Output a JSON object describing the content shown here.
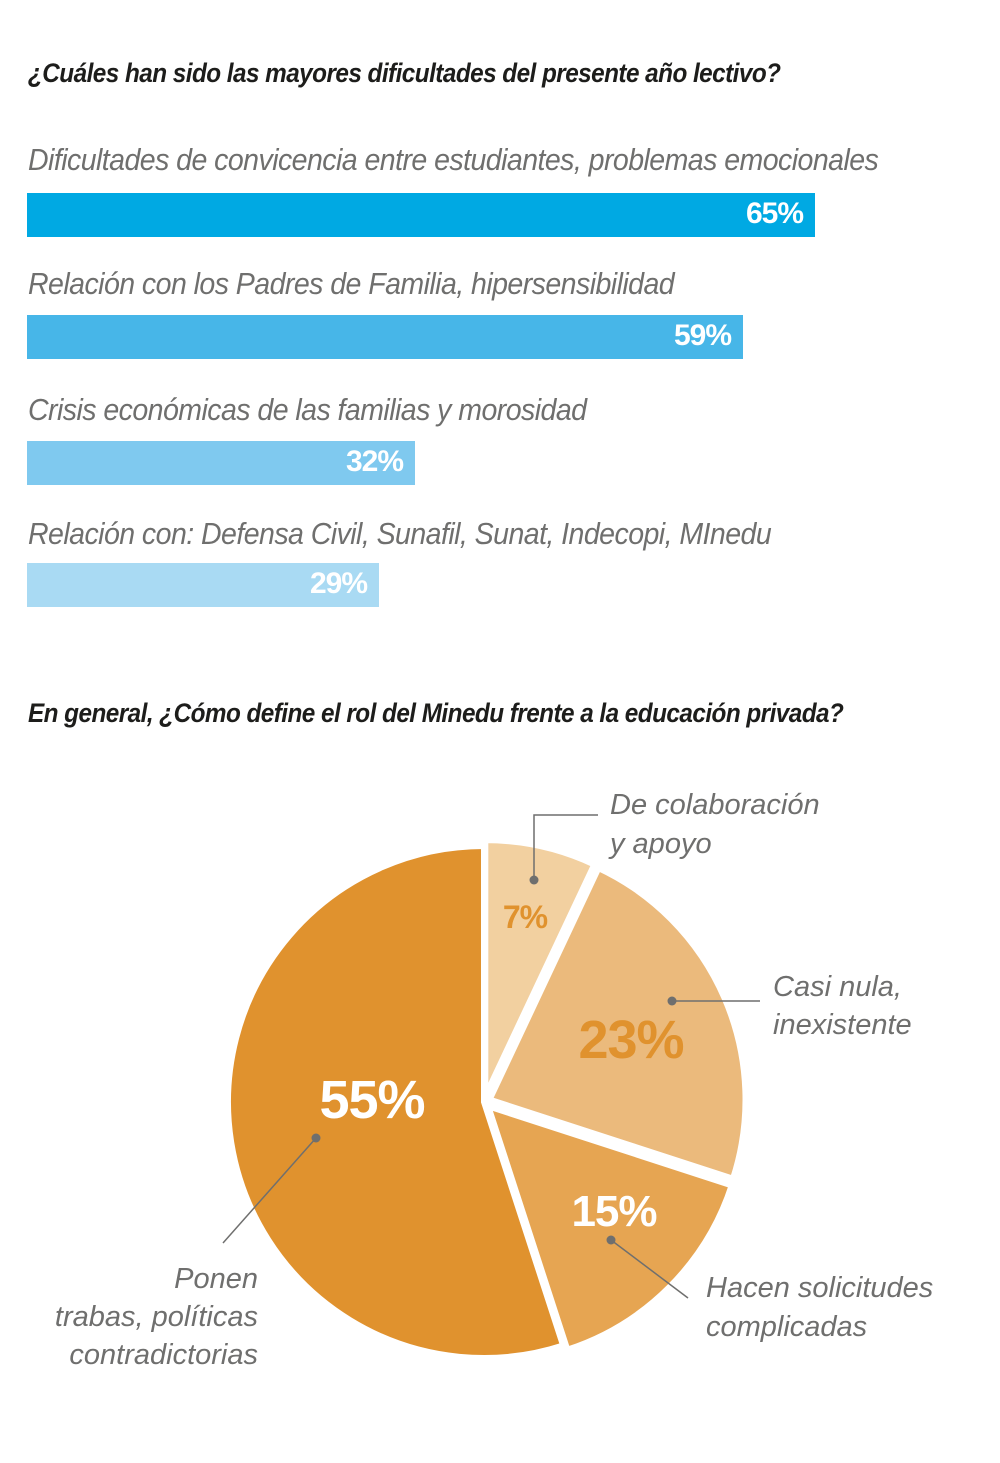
{
  "title1": "¿Cuáles han sido las mayores dificultades del presente año lectivo?",
  "title2": "En general, ¿Cómo define el rol del Minedu frente a la educación privada?",
  "bars": [
    {
      "label": "Dificultades de convicencia entre estudiantes, problemas emocionales",
      "value": 65,
      "display": "65%",
      "color": "#00a9e3"
    },
    {
      "label": "Relación con los Padres de Familia, hipersensibilidad",
      "value": 59,
      "display": "59%",
      "color": "#47b6e8"
    },
    {
      "label": "Crisis económicas de las familias y morosidad",
      "value": 32,
      "display": "32%",
      "color": "#7fc9ef"
    },
    {
      "label": "Relación con: Defensa Civil, Sunafil, Sunat, Indecopi, MInedu",
      "value": 29,
      "display": "29%",
      "color": "#a9daf3"
    }
  ],
  "chart_data": [
    {
      "type": "bar",
      "orientation": "horizontal",
      "title": "¿Cuáles han sido las mayores dificultades del presente año lectivo?",
      "categories": [
        "Dificultades de convicencia entre estudiantes, problemas emocionales",
        "Relación con los Padres de Familia, hipersensibilidad",
        "Crisis económicas de las familias y morosidad",
        "Relación con: Defensa Civil, Sunafil, Sunat, Indecopi, MInedu"
      ],
      "values": [
        65,
        59,
        32,
        29
      ],
      "unit": "%"
    },
    {
      "type": "pie",
      "title": "En general, ¿Cómo define el rol del Minedu frente a la educación privada?",
      "slices": [
        {
          "label": "De colaboración y apoyo",
          "value": 7,
          "color": "#f2d0a0"
        },
        {
          "label": "Casi nula, inexistente",
          "value": 23,
          "color": "#ebba7c"
        },
        {
          "label": "Hacen solicitudes complicadas",
          "value": 15,
          "color": "#e6a552"
        },
        {
          "label": "Ponen trabas, políticas contradictorias",
          "value": 55,
          "color": "#e0922e"
        }
      ],
      "unit": "%"
    }
  ],
  "pie_labels": [
    {
      "lines": [
        "De colaboración",
        "y apoyo"
      ],
      "pct": "7%",
      "pct_color": "#e0922e"
    },
    {
      "lines": [
        "Casi nula,",
        "inexistente"
      ],
      "pct": "23%",
      "pct_color": "#e0922e"
    },
    {
      "lines": [
        "Hacen solicitudes",
        "complicadas"
      ],
      "pct": "15%",
      "pct_color": "#ffffff"
    },
    {
      "lines": [
        "Ponen",
        "trabas, políticas",
        "contradictorias"
      ],
      "pct": "55%",
      "pct_color": "#ffffff"
    }
  ]
}
